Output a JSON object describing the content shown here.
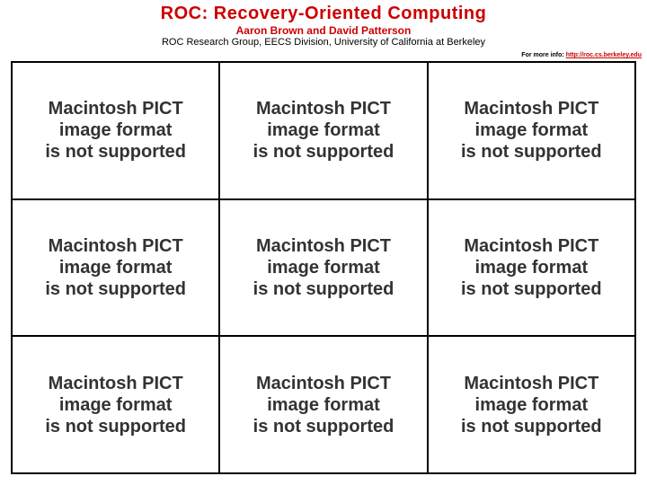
{
  "header": {
    "title": "ROC: Recovery-Oriented Computing",
    "authors": "Aaron Brown and David Patterson",
    "affiliation": "ROC Research Group, EECS Division, University of California at Berkeley",
    "title_color": "#cc0000",
    "authors_color": "#cc0000",
    "affiliation_color": "#000000"
  },
  "more_info": {
    "label": "For more info:",
    "label_color": "#000000",
    "link_text": "http://roc.cs.berkeley.edu",
    "link_color": "#cc0000"
  },
  "grid": {
    "rows": 3,
    "cols": 3,
    "border_color": "#000000",
    "cell_text_color": "#333333",
    "cell_font_family": "Arial",
    "cell_font_weight": "bold",
    "cell_font_size_pt": 15,
    "cells": [
      [
        "Macintosh PICT image format is not supported",
        "Macintosh PICT image format is not supported",
        "Macintosh PICT image format is not supported"
      ],
      [
        "Macintosh PICT image format is not supported",
        "Macintosh PICT image format is not supported",
        "Macintosh PICT image format is not supported"
      ],
      [
        "Macintosh PICT image format is not supported",
        "Macintosh PICT image format is not supported",
        "Macintosh PICT image format is not supported"
      ]
    ]
  },
  "background_color": "#ffffff"
}
